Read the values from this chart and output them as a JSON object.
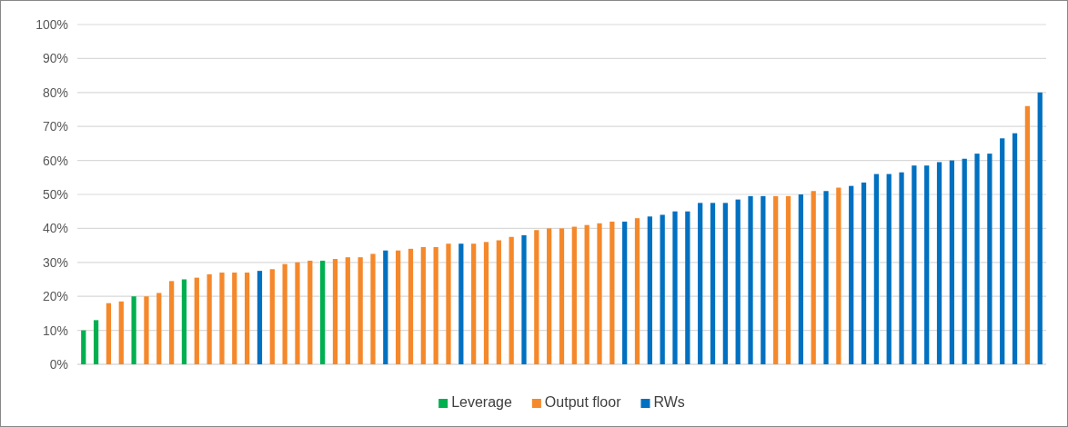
{
  "chart_data": {
    "type": "bar",
    "stacked": true,
    "grid": "y",
    "legend": "bottom",
    "categories": [
      null,
      null,
      null,
      null,
      null,
      null,
      null,
      null,
      null,
      null,
      null,
      null,
      null,
      null,
      null,
      null,
      null,
      null,
      null,
      null,
      null,
      null,
      null,
      null,
      null,
      null,
      null,
      null,
      null,
      null,
      null,
      null,
      null,
      null,
      null,
      null,
      null,
      null,
      null,
      null,
      null,
      null,
      null,
      null,
      null,
      null,
      null,
      null,
      null,
      null,
      null,
      null,
      null,
      null,
      null,
      null,
      null,
      null,
      null,
      null,
      null,
      null,
      null,
      null,
      null,
      null,
      null,
      null,
      null,
      null,
      null,
      null,
      null,
      null,
      null,
      null,
      null
    ],
    "ylim": [
      0,
      100
    ],
    "yticks": [
      {
        "value": 0,
        "label": "0%"
      },
      {
        "value": 10,
        "label": "10%"
      },
      {
        "value": 20,
        "label": "20%"
      },
      {
        "value": 30,
        "label": "30%"
      },
      {
        "value": 40,
        "label": "40%"
      },
      {
        "value": 50,
        "label": "50%"
      },
      {
        "value": 60,
        "label": "60%"
      },
      {
        "value": 70,
        "label": "70%"
      },
      {
        "value": 80,
        "label": "80%"
      },
      {
        "value": 90,
        "label": "90%"
      },
      {
        "value": 100,
        "label": "100%"
      }
    ],
    "series": [
      {
        "name": "Leverage",
        "color": "#00b050",
        "values": [
          10,
          13,
          null,
          null,
          20,
          null,
          null,
          null,
          25,
          null,
          null,
          null,
          null,
          null,
          null,
          null,
          null,
          null,
          null,
          30.5,
          null,
          null,
          null,
          null,
          null,
          null,
          null,
          null,
          null,
          null,
          null,
          null,
          null,
          null,
          null,
          null,
          null,
          null,
          null,
          null,
          null,
          null,
          null,
          null,
          null,
          null,
          null,
          null,
          null,
          null,
          null,
          null,
          null,
          null,
          null,
          null,
          null,
          null,
          null,
          null,
          null,
          null,
          null,
          null,
          null,
          null,
          null,
          null,
          null,
          null,
          null,
          null,
          null,
          null,
          null,
          null,
          null
        ]
      },
      {
        "name": "Output floor",
        "color": "#f5882a",
        "values": [
          null,
          null,
          18,
          18.5,
          null,
          20,
          21,
          24.5,
          null,
          25.5,
          26.5,
          27,
          27,
          27,
          null,
          28,
          29.5,
          30,
          30.5,
          null,
          31,
          31.5,
          31.5,
          32.5,
          null,
          33.5,
          34,
          34.5,
          34.5,
          35.5,
          null,
          35.5,
          36,
          36.5,
          37.5,
          null,
          39.5,
          40,
          40,
          40.5,
          41,
          41.5,
          42,
          null,
          43,
          null,
          null,
          null,
          null,
          null,
          null,
          null,
          null,
          null,
          null,
          49.5,
          49.5,
          null,
          51,
          null,
          52,
          null,
          null,
          null,
          null,
          null,
          null,
          null,
          null,
          null,
          null,
          null,
          null,
          null,
          null,
          76,
          null
        ]
      },
      {
        "name": "RWs",
        "color": "#0070c0",
        "values": [
          null,
          null,
          null,
          null,
          null,
          null,
          null,
          null,
          null,
          null,
          null,
          null,
          null,
          null,
          27.5,
          null,
          null,
          null,
          null,
          null,
          null,
          null,
          null,
          null,
          33.5,
          null,
          null,
          null,
          null,
          null,
          35.5,
          null,
          null,
          null,
          null,
          38,
          null,
          null,
          null,
          null,
          null,
          null,
          null,
          42,
          null,
          43.5,
          44,
          45,
          45,
          47.5,
          47.5,
          47.5,
          48.5,
          49.5,
          49.5,
          null,
          null,
          50,
          null,
          51,
          null,
          52.5,
          53.5,
          56,
          56,
          56.5,
          58.5,
          58.5,
          59.5,
          60,
          60.5,
          62,
          62,
          66.5,
          68,
          null,
          80
        ]
      }
    ]
  }
}
